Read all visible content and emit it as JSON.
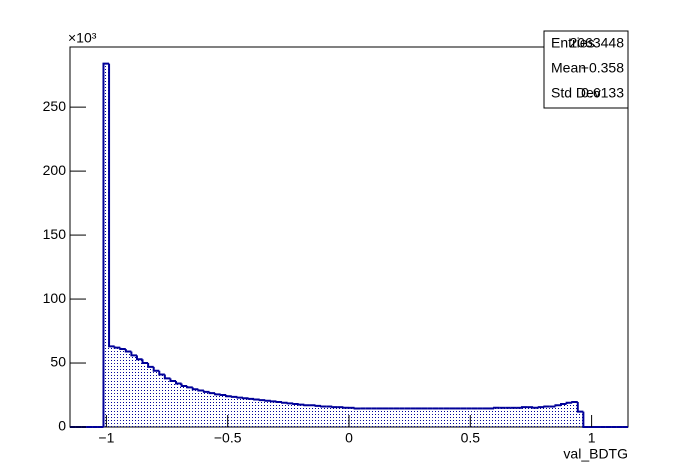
{
  "chart_data": {
    "type": "histogram",
    "x_label": "val_BDTG",
    "y_multiplier": "×10³",
    "color": "#000099",
    "bins": [
      -1.15,
      -1.127,
      -1.104,
      -1.081,
      -1.058,
      -1.035,
      -1.012,
      -0.989,
      -0.966,
      -0.943,
      -0.92,
      -0.897,
      -0.874,
      -0.851,
      -0.828,
      -0.805,
      -0.782,
      -0.759,
      -0.736,
      -0.713,
      -0.69,
      -0.667,
      -0.644,
      -0.621,
      -0.598,
      -0.575,
      -0.552,
      -0.529,
      -0.506,
      -0.483,
      -0.46,
      -0.437,
      -0.414,
      -0.391,
      -0.368,
      -0.345,
      -0.322,
      -0.299,
      -0.276,
      -0.253,
      -0.23,
      -0.207,
      -0.184,
      -0.161,
      -0.138,
      -0.115,
      -0.092,
      -0.069,
      -0.046,
      -0.023,
      0,
      0.023,
      0.046,
      0.069,
      0.092,
      0.115,
      0.138,
      0.161,
      0.184,
      0.207,
      0.23,
      0.253,
      0.276,
      0.299,
      0.322,
      0.345,
      0.368,
      0.391,
      0.414,
      0.437,
      0.46,
      0.483,
      0.506,
      0.529,
      0.552,
      0.575,
      0.598,
      0.621,
      0.644,
      0.667,
      0.69,
      0.713,
      0.736,
      0.759,
      0.782,
      0.805,
      0.828,
      0.851,
      0.874,
      0.897,
      0.92,
      0.943,
      0.966,
      0.989,
      1.012,
      1.035,
      1.058,
      1.081,
      1.104,
      1.127,
      1.15
    ],
    "values": [
      0,
      0,
      0,
      0,
      0,
      0,
      284,
      63,
      62,
      61,
      59,
      56,
      53,
      50,
      47,
      44,
      41,
      38,
      36,
      34,
      32,
      31,
      29.5,
      28.5,
      27.5,
      26.5,
      25.5,
      25,
      24,
      23.5,
      23,
      22.5,
      22,
      21.5,
      21,
      20.5,
      20,
      19.5,
      19,
      18.5,
      18,
      17.5,
      17,
      17,
      16.5,
      16,
      16,
      15.5,
      15.5,
      15,
      15,
      14.5,
      14.5,
      14.5,
      14.5,
      14.5,
      14.5,
      14.5,
      14.5,
      14.5,
      14.5,
      14.5,
      14.5,
      14.5,
      14.5,
      14.5,
      14.5,
      14.5,
      14.5,
      14.5,
      14.5,
      14.5,
      14.5,
      14.5,
      14.5,
      14.5,
      15,
      15,
      15,
      15,
      15,
      15.5,
      15.5,
      15,
      15.5,
      16,
      16,
      17,
      18,
      19,
      19.5,
      12,
      0,
      0,
      0,
      0,
      0,
      0,
      0,
      0
    ],
    "xlim": [
      -1.15,
      1.15
    ],
    "xticks": [
      {
        "value": -1,
        "label": "−1"
      },
      {
        "value": -0.5,
        "label": "−0.5"
      },
      0,
      0.5,
      1
    ],
    "ylim": [
      0,
      297
    ],
    "yticks": [
      0,
      50,
      100,
      150,
      200,
      250
    ],
    "stats": [
      {
        "name": "Entries",
        "value": "2063448"
      },
      {
        "name": "Mean",
        "value": "−0.358"
      },
      {
        "name": "Std Dev",
        "value": "0.6133"
      }
    ]
  }
}
